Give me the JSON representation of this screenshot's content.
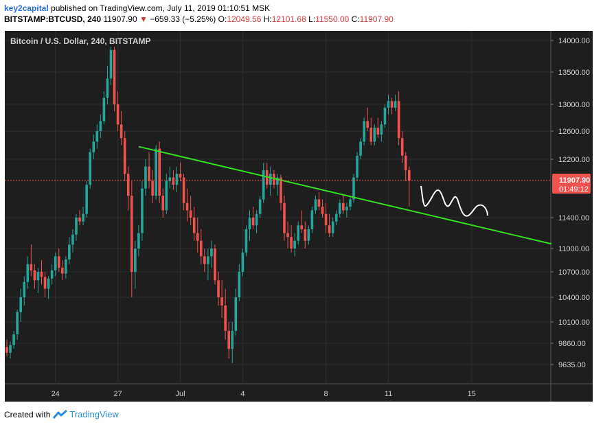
{
  "header": {
    "author": "key2capital",
    "published": "published on TradingView.com, July 11, 2019 01:10:51 MSK",
    "symbol": "BITSTAMP:BTCUSD, 240",
    "last": "11907.90",
    "change": "−659.33 (−5.25%)",
    "o_label": "O:",
    "o_value": "12049.56",
    "h_label": "H:",
    "h_value": "12101.68",
    "l_label": "L:",
    "l_value": "11550.00",
    "c_label": "C:",
    "c_value": "11907.90"
  },
  "footer": {
    "created_with": "Created with",
    "brand": "TradingView"
  },
  "colors": {
    "up": "#26a69a",
    "down": "#ef5350",
    "trendline": "#33e01e",
    "background": "#1e1e1e",
    "price_tag": "#ef5350"
  },
  "icons": {
    "down_arrow": "triangle-down-icon",
    "logo": "tradingview-logo-icon"
  },
  "chart_data": {
    "type": "candlestick",
    "title": "Bitcoin / U.S. Dollar, 240, BITSTAMP",
    "timeframe": "240",
    "y_ticks": [
      9635,
      9860,
      10100,
      10400,
      10700,
      11000,
      11400,
      12200,
      12600,
      13000,
      13500,
      14000
    ],
    "y_tick_labels": [
      "9635.00",
      "9860.00",
      "10100.00",
      "10400.00",
      "10700.00",
      "11000.00",
      "11400.00",
      "12200.00",
      "12600.00",
      "13000.00",
      "13500.00",
      "14000.00"
    ],
    "x_ticks": [
      {
        "label": "24",
        "bar": 14
      },
      {
        "label": "27",
        "bar": 32
      },
      {
        "label": "Jul",
        "bar": 50
      },
      {
        "label": "4",
        "bar": 68
      },
      {
        "label": "8",
        "bar": 92
      },
      {
        "label": "11",
        "bar": 110
      },
      {
        "label": "15",
        "bar": 134
      }
    ],
    "bars_visible": 157,
    "last_price": 11907.9,
    "last_price_label": "11907.90",
    "countdown": "01:49:12",
    "trendline": {
      "start": {
        "bar": 38,
        "price": 12380
      },
      "end": {
        "bar": 157,
        "price": 11060
      }
    },
    "projection_note": "hand-drawn wave projection after last bar",
    "candles": [
      [
        9820,
        9900,
        9720,
        9760
      ],
      [
        9760,
        9880,
        9700,
        9840
      ],
      [
        9840,
        10000,
        9800,
        9960
      ],
      [
        9960,
        10250,
        9900,
        10220
      ],
      [
        10220,
        10500,
        10100,
        10400
      ],
      [
        10400,
        10650,
        10300,
        10580
      ],
      [
        10580,
        10900,
        10500,
        10800
      ],
      [
        10800,
        11050,
        10650,
        10720
      ],
      [
        10720,
        10800,
        10500,
        10600
      ],
      [
        10600,
        10750,
        10450,
        10700
      ],
      [
        10700,
        10850,
        10550,
        10640
      ],
      [
        10640,
        10700,
        10400,
        10500
      ],
      [
        10500,
        10650,
        10380,
        10620
      ],
      [
        10620,
        10800,
        10550,
        10720
      ],
      [
        10720,
        10950,
        10650,
        10900
      ],
      [
        10900,
        11000,
        10700,
        10750
      ],
      [
        10750,
        10850,
        10600,
        10680
      ],
      [
        10680,
        10900,
        10620,
        10860
      ],
      [
        10860,
        11150,
        10800,
        11050
      ],
      [
        11050,
        11250,
        10950,
        11180
      ],
      [
        11180,
        11450,
        11100,
        11400
      ],
      [
        11400,
        11500,
        11300,
        11350
      ],
      [
        11350,
        11550,
        11300,
        11450
      ],
      [
        11450,
        11900,
        11400,
        11850
      ],
      [
        11850,
        12350,
        11800,
        12300
      ],
      [
        12300,
        12550,
        12200,
        12450
      ],
      [
        12450,
        12700,
        12350,
        12600
      ],
      [
        12600,
        12850,
        12500,
        12750
      ],
      [
        12750,
        13200,
        12700,
        13100
      ],
      [
        13100,
        13600,
        13000,
        13400
      ],
      [
        13400,
        13900,
        13300,
        13850
      ],
      [
        13850,
        13900,
        12900,
        13000
      ],
      [
        13000,
        13200,
        12600,
        12700
      ],
      [
        12700,
        12900,
        12400,
        12500
      ],
      [
        12500,
        12600,
        11900,
        12000
      ],
      [
        12000,
        12100,
        11500,
        11700
      ],
      [
        11700,
        11900,
        10400,
        10700
      ],
      [
        10700,
        11100,
        10500,
        11000
      ],
      [
        11000,
        11300,
        10900,
        11200
      ],
      [
        11200,
        11900,
        11100,
        11800
      ],
      [
        11800,
        12200,
        11700,
        12100
      ],
      [
        12100,
        12300,
        11800,
        11900
      ],
      [
        11900,
        12050,
        11600,
        11700
      ],
      [
        11700,
        12400,
        11650,
        12350
      ],
      [
        12350,
        12450,
        11600,
        11700
      ],
      [
        11700,
        11800,
        11400,
        11500
      ],
      [
        11500,
        12000,
        11450,
        11900
      ],
      [
        11900,
        12100,
        11800,
        11950
      ],
      [
        11950,
        12050,
        11780,
        11850
      ],
      [
        11850,
        12100,
        11750,
        12000
      ],
      [
        12000,
        12150,
        11900,
        11950
      ],
      [
        11950,
        12000,
        11500,
        11600
      ],
      [
        11600,
        11800,
        11350,
        11500
      ],
      [
        11500,
        11700,
        11300,
        11400
      ],
      [
        11400,
        11550,
        11100,
        11200
      ],
      [
        11200,
        11400,
        10950,
        11100
      ],
      [
        11100,
        11250,
        10800,
        10900
      ],
      [
        10900,
        11000,
        10700,
        10800
      ],
      [
        10800,
        11000,
        10600,
        10900
      ],
      [
        10900,
        11100,
        10750,
        11000
      ],
      [
        11000,
        11050,
        10550,
        10600
      ],
      [
        10600,
        10700,
        10300,
        10400
      ],
      [
        10400,
        10600,
        10150,
        10300
      ],
      [
        10300,
        10500,
        9900,
        10000
      ],
      [
        10000,
        10100,
        9700,
        9800
      ],
      [
        9800,
        10100,
        9650,
        10000
      ],
      [
        10000,
        10500,
        9950,
        10400
      ],
      [
        10400,
        10800,
        10350,
        10700
      ],
      [
        10700,
        11000,
        10650,
        10950
      ],
      [
        10950,
        11300,
        10900,
        11250
      ],
      [
        11250,
        11500,
        11100,
        11400
      ],
      [
        11400,
        11550,
        11250,
        11300
      ],
      [
        11300,
        11500,
        11200,
        11450
      ],
      [
        11450,
        11700,
        11400,
        11650
      ],
      [
        11650,
        12150,
        11600,
        12050
      ],
      [
        12050,
        12150,
        11800,
        11850
      ],
      [
        11850,
        12100,
        11700,
        12000
      ],
      [
        12000,
        12050,
        11800,
        11850
      ],
      [
        11850,
        12000,
        11700,
        11950
      ],
      [
        11950,
        11990,
        11500,
        11600
      ],
      [
        11600,
        11700,
        11100,
        11200
      ],
      [
        11200,
        11350,
        11000,
        11150
      ],
      [
        11150,
        11300,
        10950,
        11000
      ],
      [
        11000,
        11200,
        10900,
        11100
      ],
      [
        11100,
        11350,
        11050,
        11300
      ],
      [
        11300,
        11500,
        11200,
        11250
      ],
      [
        11250,
        11350,
        11000,
        11100
      ],
      [
        11100,
        11300,
        11050,
        11250
      ],
      [
        11250,
        11550,
        11200,
        11500
      ],
      [
        11500,
        11700,
        11450,
        11650
      ],
      [
        11650,
        11750,
        11500,
        11550
      ],
      [
        11550,
        11650,
        11400,
        11450
      ],
      [
        11450,
        11600,
        11200,
        11300
      ],
      [
        11300,
        11450,
        11150,
        11200
      ],
      [
        11200,
        11400,
        11150,
        11350
      ],
      [
        11350,
        11500,
        11300,
        11450
      ],
      [
        11450,
        11650,
        11400,
        11600
      ],
      [
        11600,
        11700,
        11450,
        11500
      ],
      [
        11500,
        11600,
        11400,
        11550
      ],
      [
        11550,
        11700,
        11500,
        11650
      ],
      [
        11650,
        12000,
        11600,
        11950
      ],
      [
        11950,
        12300,
        11900,
        12250
      ],
      [
        12250,
        12500,
        12200,
        12450
      ],
      [
        12450,
        12800,
        12400,
        12750
      ],
      [
        12750,
        12950,
        12600,
        12650
      ],
      [
        12650,
        12800,
        12400,
        12450
      ],
      [
        12450,
        12700,
        12400,
        12650
      ],
      [
        12650,
        12800,
        12500,
        12550
      ],
      [
        12550,
        12750,
        12450,
        12700
      ],
      [
        12700,
        13000,
        12650,
        12950
      ],
      [
        12950,
        13150,
        12850,
        13050
      ],
      [
        13050,
        13100,
        12850,
        12950
      ],
      [
        12950,
        13150,
        12900,
        13050
      ],
      [
        13050,
        13200,
        12400,
        12500
      ],
      [
        12500,
        12600,
        12150,
        12250
      ],
      [
        12250,
        12300,
        11900,
        12049.56
      ],
      [
        12049.56,
        12101.68,
        11550,
        11907.9
      ]
    ]
  }
}
